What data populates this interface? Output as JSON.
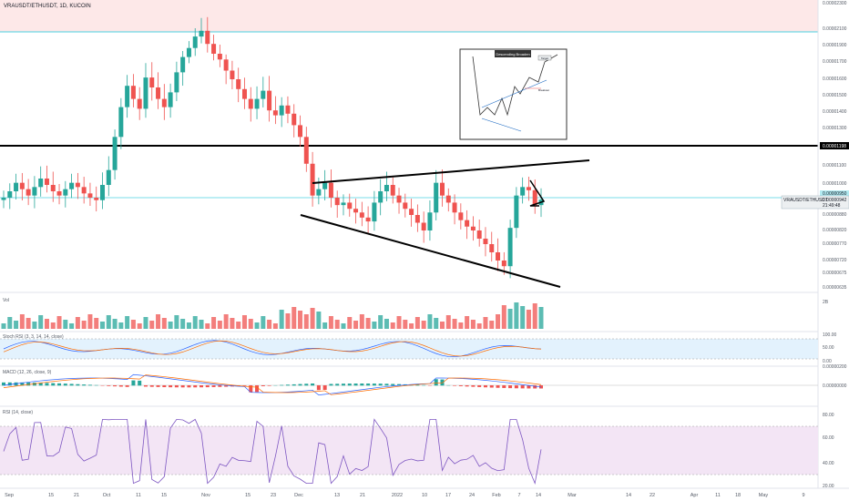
{
  "header": {
    "title": "VRAUSDT/ETHUSDT, 1D, KUCOIN"
  },
  "price_axis": {
    "ticks": [
      "0.00002300",
      "0.00002100",
      "0.00001900",
      "0.00001700",
      "0.00001600",
      "0.00001500",
      "0.00001400",
      "0.00001300",
      "0.00001100",
      "0.00001000",
      "0.00000880",
      "0.00000820",
      "0.00000770",
      "0.00000720",
      "0.00000675",
      "0.00000635"
    ],
    "hline_label": "0.00001198",
    "current_symbol": "VRAUSDT/ETHUSDT",
    "current_value": "0.00000942",
    "current_time": "21:49:48",
    "level_label": "0.00000950"
  },
  "panes": {
    "vol": {
      "label": "Vol",
      "tick": "2B"
    },
    "stoch": {
      "label": "Stoch RSI (3, 3, 14, 14, close)",
      "ticks": [
        "100.00",
        "50.00",
        "0.00"
      ]
    },
    "macd": {
      "label": "MACD (12, 26, close, 9)",
      "ticks": [
        "0.00000200",
        "0.00000000"
      ]
    },
    "rsi": {
      "label": "RSI (14, close)",
      "ticks": [
        "80.00",
        "60.00",
        "40.00",
        "20.00"
      ]
    }
  },
  "x_axis": [
    "Sep",
    "15",
    "21",
    "Oct",
    "11",
    "15",
    "Nov",
    "15",
    "23",
    "Dec",
    "13",
    "21",
    "2022",
    "10",
    "17",
    "24",
    "Feb",
    "7",
    "14",
    "Mar",
    "14",
    "22",
    "Apr",
    "11",
    "18",
    "May",
    "9"
  ],
  "inset": {
    "title": "Descending Broaden",
    "label_target": "Target",
    "label_breakout": "Breakout"
  },
  "colors": {
    "up": "#26a69a",
    "down": "#ef5350",
    "band": "#fde8e8",
    "hline": "#4dd0e1",
    "stoch_band": "#e3f2fd",
    "rsi_band": "#f3e5f5"
  },
  "chart_data": {
    "type": "candlestick",
    "title": "VRAUSDT/ETHUSDT, 1D, KUCOIN",
    "currency": "ETH",
    "timeframe": "1D",
    "x_range": [
      "Sep",
      "May"
    ],
    "series": [
      {
        "name": "price",
        "close_path": [
          9.5e-06,
          9.8e-06,
          1.02e-05,
          9.9e-06,
          9.6e-06,
          1e-05,
          1.04e-05,
          1.01e-05,
          9.8e-06,
          9.6e-06,
          9.9e-06,
          1.02e-05,
          1e-05,
          9.7e-06,
          9.5e-06,
          9.4e-06,
          1.01e-05,
          1.08e-05,
          1.25e-05,
          1.43e-05,
          1.56e-05,
          1.48e-05,
          1.42e-05,
          1.61e-05,
          1.55e-05,
          1.48e-05,
          1.43e-05,
          1.52e-05,
          1.64e-05,
          1.76e-05,
          1.87e-05,
          2.01e-05,
          2.08e-05,
          1.92e-05,
          1.8e-05,
          1.73e-05,
          1.65e-05,
          1.6e-05,
          1.54e-05,
          1.48e-05,
          1.42e-05,
          1.48e-05,
          1.53e-05,
          1.41e-05,
          1.38e-05,
          1.44e-05,
          1.39e-05,
          1.32e-05,
          1.25e-05,
          1.11e-05,
          9.6e-06,
          9.9e-06,
          1.02e-05,
          9.5e-06,
          9.2e-06,
          9.3e-06,
          9.05e-06,
          8.9e-06,
          8.7e-06,
          8.55e-06,
          9.3e-06,
          9.8e-06,
          1.01e-05,
          9.6e-06,
          9.3e-06,
          9.05e-06,
          8.8e-06,
          8.5e-06,
          8.2e-06,
          8.9e-06,
          1.02e-05,
          9.6e-06,
          9.3e-06,
          8.9e-06,
          8.6e-06,
          8.35e-06,
          8.2e-06,
          7.9e-06,
          7.7e-06,
          7.45e-06,
          7.2e-06,
          7e-06,
          8.3e-06,
          9.6e-06,
          1e-05,
          9.85e-06,
          9.2e-06,
          9.42e-06
        ]
      }
    ],
    "horizontal_levels": [
      1.198e-05,
      9.5e-06
    ],
    "volume_max_label": "2B",
    "stoch_rsi": {
      "range": [
        0,
        100
      ]
    },
    "macd": {
      "zero": 0
    },
    "rsi": {
      "range": [
        20,
        80
      ],
      "levels": [
        70,
        30
      ]
    }
  }
}
